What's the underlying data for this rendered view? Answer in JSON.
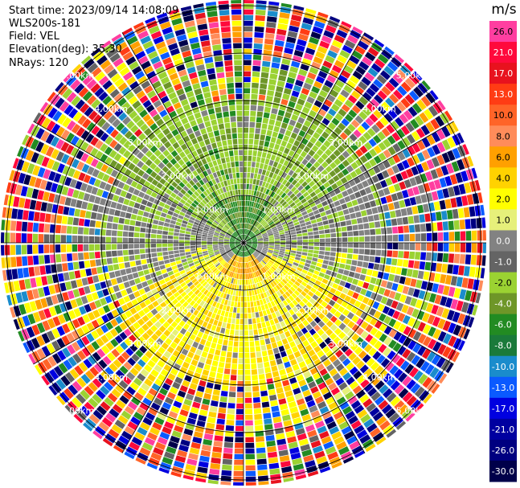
{
  "header": {
    "start_time": "Start time: 2023/09/14 14:08:09",
    "instrument": "WLS200s-181",
    "field": "Field: VEL",
    "elevation": "Elevation(deg): 35.30",
    "nrays": "NRays: 120"
  },
  "chart_data": {
    "type": "heatmap",
    "projection": "polar (PPI)",
    "field": "VEL",
    "n_rays": 120,
    "range_rings_km": [
      1.0,
      2.0,
      3.0,
      4.0,
      5.0
    ],
    "ring_labels": [
      "1.00km",
      "2.00km",
      "3.00km",
      "4.00km",
      "5.00km"
    ],
    "azimuth_lines_deg": [
      0,
      30,
      60,
      90,
      120,
      150,
      180,
      210,
      240,
      270,
      300,
      330
    ],
    "colorbar": {
      "unit": "m/s",
      "tick_labels": [
        "26.0",
        "21.0",
        "17.0",
        "13.0",
        "10.0",
        "8.0",
        "6.0",
        "4.0",
        "2.0",
        "1.0",
        "0.0",
        "-1.0",
        "-2.0",
        "-4.0",
        "-6.0",
        "-8.0",
        "-10.0",
        "-13.0",
        "-17.0",
        "-21.0",
        "-26.0",
        "-30.0"
      ],
      "colors": [
        "#ff3ea0",
        "#ff0a3c",
        "#e8121e",
        "#ff3c14",
        "#ff6428",
        "#ff8c5a",
        "#ffa000",
        "#ffd200",
        "#ffff00",
        "#e6f07a",
        "#828282",
        "#646464",
        "#9bd232",
        "#6e9628",
        "#228b22",
        "#1a7a3a",
        "#1a8ccc",
        "#0a5aff",
        "#0000e0",
        "#0000a0",
        "#000080",
        "#00004a"
      ]
    }
  }
}
